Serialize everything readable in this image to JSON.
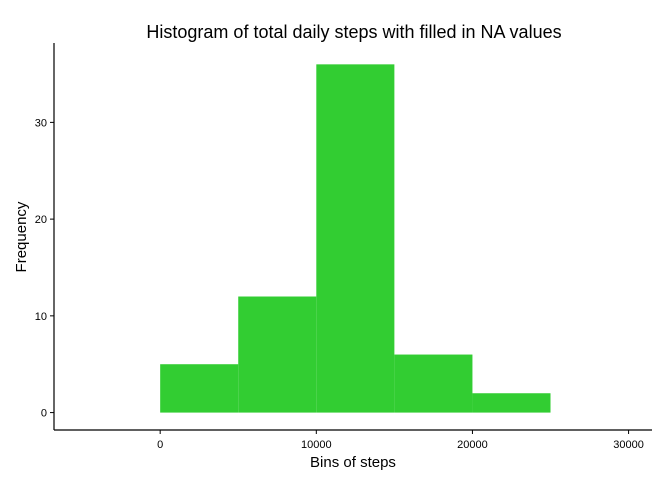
{
  "chart_data": {
    "type": "bar",
    "title": "Histogram of total daily steps with filled in NA values",
    "xlabel": "Bins of steps",
    "ylabel": "Frequency",
    "bins": [
      {
        "start": 0,
        "end": 5000,
        "count": 5
      },
      {
        "start": 5000,
        "end": 10000,
        "count": 12
      },
      {
        "start": 10000,
        "end": 15000,
        "count": 36
      },
      {
        "start": 15000,
        "end": 20000,
        "count": 6
      },
      {
        "start": 20000,
        "end": 25000,
        "count": 2
      }
    ],
    "xlim": [
      -6800,
      31500
    ],
    "ylim": [
      -1.8,
      38
    ],
    "xticks": [
      0,
      10000,
      20000,
      30000
    ],
    "yticks": [
      0,
      10,
      20,
      30
    ],
    "bar_color": "#32CD32",
    "grid": false,
    "legend": "none"
  }
}
